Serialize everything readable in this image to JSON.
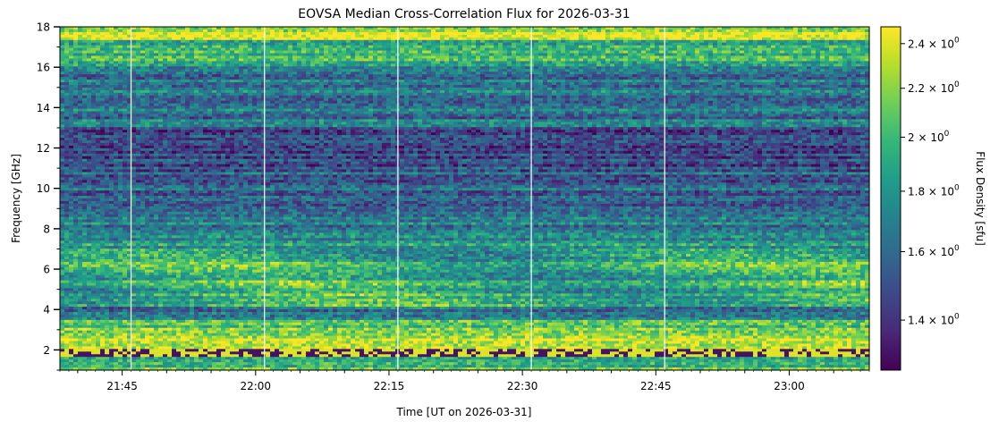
{
  "chart_data": {
    "type": "heatmap",
    "title": "EOVSA Median Cross-Correlation Flux for 2026-03-31",
    "xlabel": "Time [UT on 2026-03-31]",
    "ylabel": "Frequency [GHz]",
    "colorbar_label": "Flux Density [sfu]",
    "colormap": "viridis",
    "xlim": [
      "21:38",
      "23:09"
    ],
    "x_ticks": [
      "21:45",
      "22:00",
      "22:15",
      "22:30",
      "22:45",
      "23:00"
    ],
    "ylim": [
      1.0,
      18.0
    ],
    "y_ticks": [
      2,
      4,
      6,
      8,
      10,
      12,
      14,
      16,
      18
    ],
    "colorbar_range": [
      1.27,
      2.48
    ],
    "colorbar_ticks": [
      1.4,
      1.6,
      1.8,
      2.0,
      2.2,
      2.4
    ],
    "colorbar_tick_labels": [
      "1.4",
      "1.6",
      "1.8",
      "2",
      "2.2",
      "2.4"
    ],
    "colorbar_tick_exponent": "0",
    "data_gaps_time": [
      "21:46",
      "22:01",
      "22:16",
      "22:31",
      "22:46"
    ]
  },
  "colors": {
    "viridis": [
      "#440154",
      "#482878",
      "#3e4989",
      "#31688e",
      "#26828e",
      "#1f9e89",
      "#35b779",
      "#6ece58",
      "#b5de2b",
      "#fde725"
    ]
  }
}
